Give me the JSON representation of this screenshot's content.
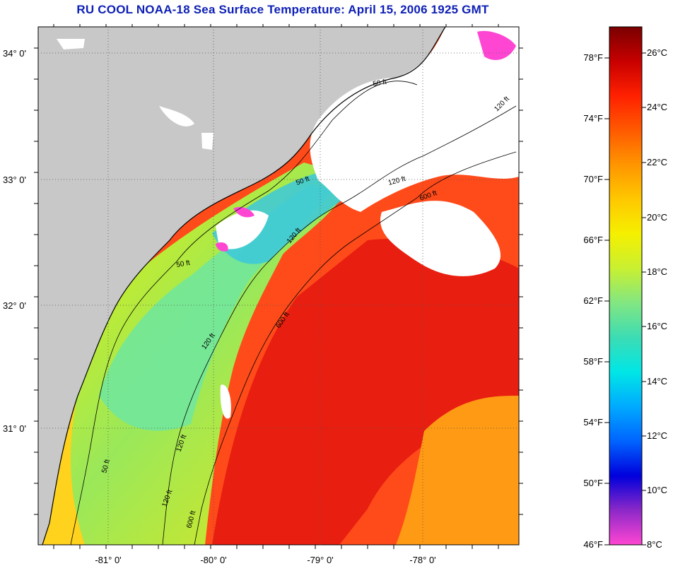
{
  "title": "RU COOL  NOAA-18  Sea Surface Temperature:  April 15, 2006 1925 GMT",
  "map": {
    "lat_labels": [
      "34° 0'",
      "33° 0'",
      "32° 0'",
      "31° 0'"
    ],
    "lon_labels": [
      "-81° 0'",
      "-80° 0'",
      "-79° 0'",
      "-78° 0'"
    ],
    "contour_labels": [
      "50 ft",
      "50 ft",
      "50 ft",
      "50 ft",
      "120 ft",
      "120 ft",
      "120 ft",
      "120 ft",
      "120 ft",
      "120 ft",
      "600 ft",
      "600 ft",
      "600 ft"
    ],
    "colors": {
      "land": "#c8c8c8",
      "cloud": "#ffffff",
      "coast": "#000000",
      "title": "#0d1fb5"
    }
  },
  "colorbar": {
    "fahrenheit_labels": [
      "78°F",
      "74°F",
      "70°F",
      "66°F",
      "62°F",
      "58°F",
      "54°F",
      "50°F",
      "46°F"
    ],
    "celsius_labels": [
      "26°C",
      "24°C",
      "22°C",
      "20°C",
      "18°C",
      "16°C",
      "14°C",
      "12°C",
      "10°C",
      "8°C"
    ],
    "colors": [
      "#7a0000",
      "#c80000",
      "#ff2000",
      "#ff5a00",
      "#ff9600",
      "#ffc800",
      "#f5f000",
      "#c8f032",
      "#82e682",
      "#3cdcb4",
      "#00e6e6",
      "#00aaff",
      "#0064ff",
      "#0000dc",
      "#8c28c8",
      "#ff46d2"
    ]
  }
}
